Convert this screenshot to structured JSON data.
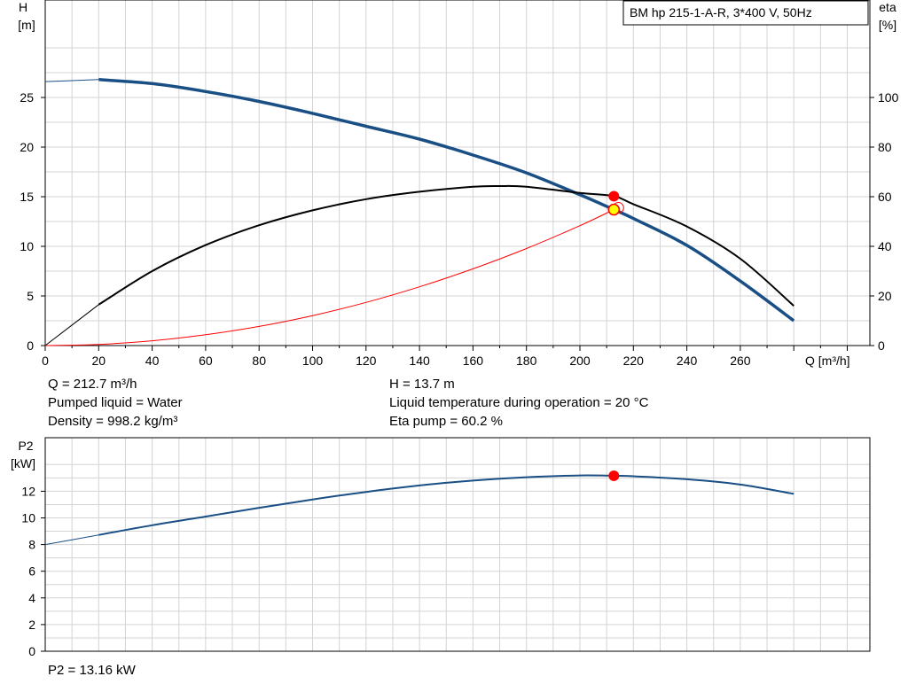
{
  "title_box": "BM hp 215-1-A-R, 3*400 V, 50Hz",
  "colors": {
    "head_curve": "#1a4f85",
    "eta_curve": "#000000",
    "system_curve": "#ff0000",
    "duty_point": "#ff0000",
    "duty_point_yellow": "#ffff00",
    "grid": "#d3d3d3"
  },
  "top_info": {
    "left": [
      "Q = 212.7 m³/h",
      "Pumped liquid = Water",
      "Density = 998.2 kg/m³"
    ],
    "right": [
      "H = 13.7 m",
      "Liquid temperature during operation = 20 °C",
      "Eta pump = 60.2 %"
    ]
  },
  "bottom_info": "P2 = 13.16 kW",
  "chart_data": [
    {
      "type": "line",
      "title": "BM hp 215-1-A-R, 3*400 V, 50Hz",
      "xlabel": "Q [m³/h]",
      "ylabel": [
        "H",
        "[m]"
      ],
      "y2label": [
        "eta",
        "[%]"
      ],
      "xlim": [
        0,
        280
      ],
      "ylim": [
        0,
        30.7
      ],
      "y2lim": [
        0,
        122.6
      ],
      "xticks": [
        "0",
        "20",
        "40",
        "60",
        "80",
        "100",
        "120",
        "140",
        "160",
        "180",
        "200",
        "220",
        "240",
        "260"
      ],
      "yticks": [
        "0",
        "5",
        "10",
        "15",
        "20",
        "25"
      ],
      "y2ticks": [
        "0",
        "20",
        "40",
        "60",
        "80",
        "100"
      ],
      "grid": true,
      "series": [
        {
          "axis": "left",
          "x": [
            0,
            20,
            40,
            60,
            80,
            100,
            120,
            140,
            160,
            180,
            200,
            212.7,
            220,
            240,
            260,
            280
          ],
          "values": [
            26.6,
            26.8,
            26.4,
            25.6,
            24.6,
            23.4,
            22.1,
            20.8,
            19.2,
            17.4,
            15.2,
            13.7,
            12.8,
            10.1,
            6.5,
            2.5
          ]
        },
        {
          "axis": "right",
          "x": [
            0,
            20,
            40,
            60,
            80,
            100,
            120,
            140,
            160,
            170,
            180,
            200,
            212.7,
            220,
            240,
            260,
            280
          ],
          "values": [
            0,
            16.5,
            30,
            40.5,
            48.5,
            54.5,
            59,
            62,
            64,
            64.3,
            64,
            61.5,
            60.2,
            57,
            48,
            35,
            16
          ]
        },
        {
          "axis": "left",
          "x": [
            0,
            20,
            40,
            60,
            80,
            100,
            120,
            140,
            160,
            180,
            200,
            212.7
          ],
          "values": [
            0,
            0.12,
            0.48,
            1.09,
            1.93,
            3.02,
            4.35,
            5.92,
            7.73,
            9.78,
            12.08,
            13.7
          ]
        }
      ],
      "duty_point": {
        "q": 212.7,
        "h": 13.7,
        "eta": 60.2
      }
    },
    {
      "type": "line",
      "xlabel": "",
      "ylabel": [
        "P2",
        "[kW]"
      ],
      "xlim": [
        0,
        280
      ],
      "ylim": [
        0,
        14.4
      ],
      "yticks": [
        "0",
        "2",
        "4",
        "6",
        "8",
        "10",
        "12"
      ],
      "grid": true,
      "series": [
        {
          "x": [
            0,
            20,
            40,
            60,
            80,
            100,
            120,
            140,
            160,
            180,
            200,
            212.7,
            220,
            240,
            260,
            280
          ],
          "values": [
            8.0,
            8.72,
            9.45,
            10.1,
            10.76,
            11.38,
            11.95,
            12.43,
            12.8,
            13.05,
            13.18,
            13.16,
            13.12,
            12.9,
            12.5,
            11.8
          ]
        }
      ],
      "duty_point": {
        "q": 212.7,
        "p2": 13.16
      }
    }
  ]
}
